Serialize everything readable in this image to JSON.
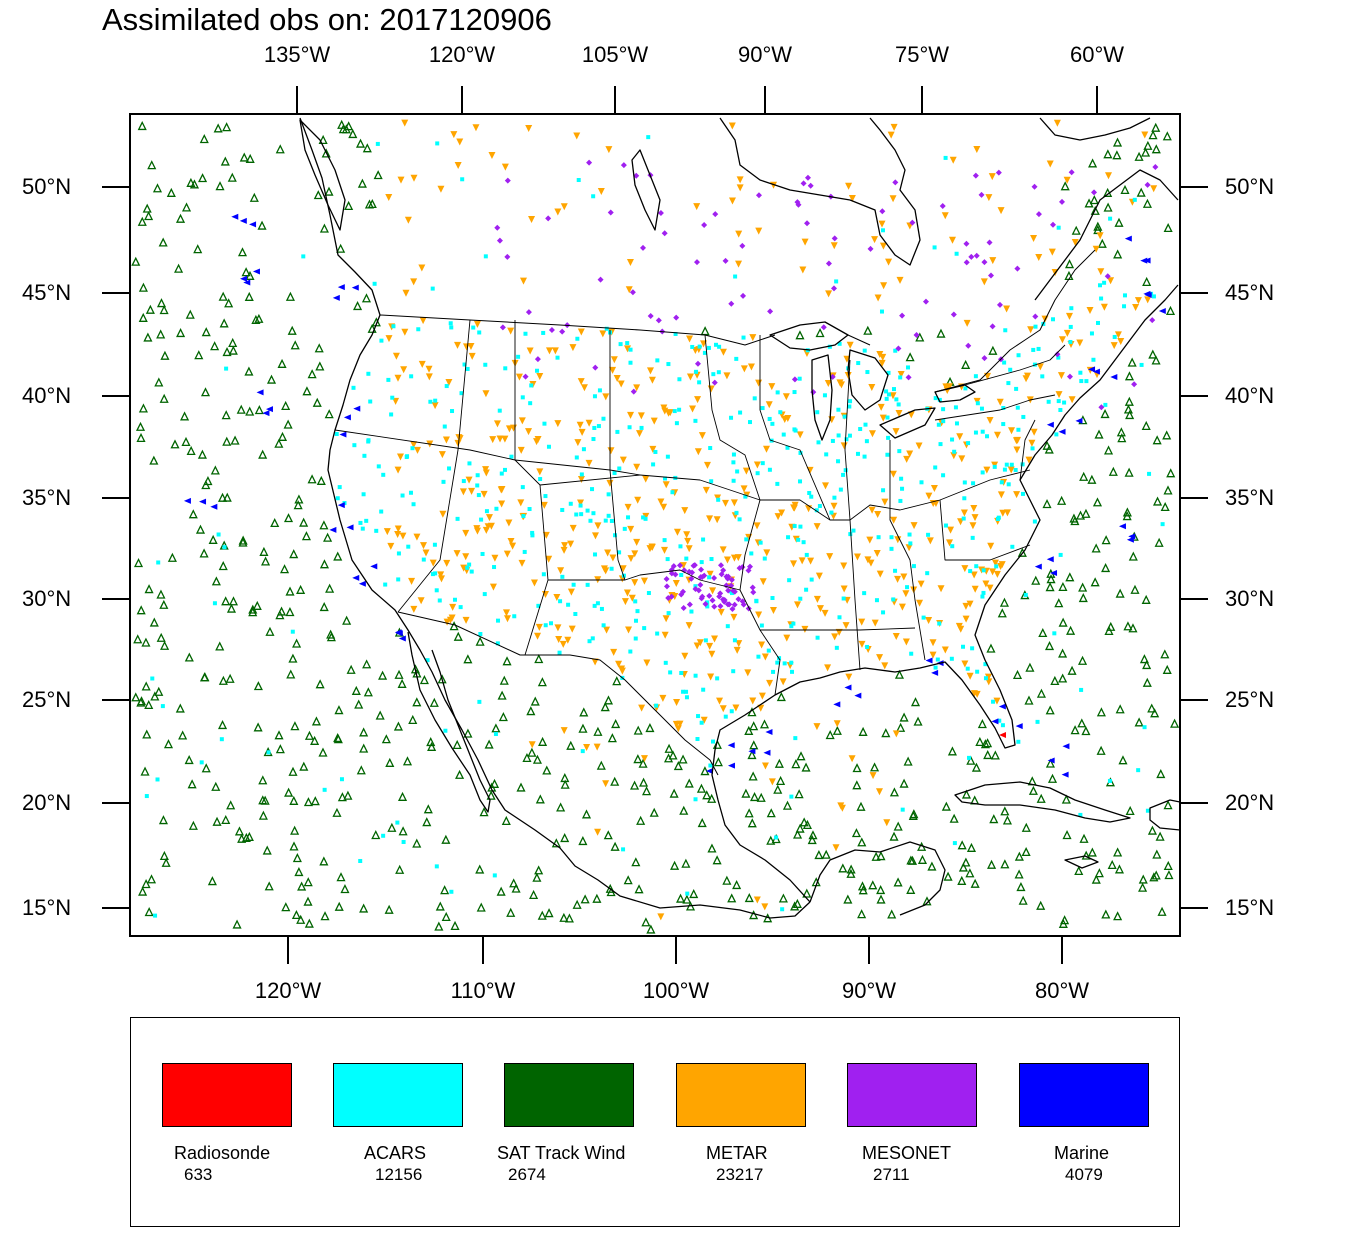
{
  "title": "Assimilated obs on: 2017120906",
  "axes": {
    "top_longitude_labels": [
      "135°W",
      "120°W",
      "105°W",
      "90°W",
      "75°W",
      "60°W"
    ],
    "bottom_longitude_labels": [
      "120°W",
      "110°W",
      "100°W",
      "90°W",
      "80°W"
    ],
    "latitude_labels": [
      "50°N",
      "45°N",
      "40°N",
      "35°N",
      "30°N",
      "25°N",
      "20°N",
      "15°N"
    ]
  },
  "legend": [
    {
      "name": "Radiosonde",
      "count": "633",
      "color": "#ff0000"
    },
    {
      "name": "ACARS",
      "count": "12156",
      "color": "#00ffff"
    },
    {
      "name": "SAT Track Wind",
      "count": "2674",
      "color": "#006400"
    },
    {
      "name": "METAR",
      "count": "23217",
      "color": "#ffa500"
    },
    {
      "name": "MESONET",
      "count": "2711",
      "color": "#a020f0"
    },
    {
      "name": "Marine",
      "count": "4079",
      "color": "#0000ff"
    }
  ],
  "symbols": {
    "Radiosonde": "red marker",
    "ACARS": "cyan square",
    "SAT Track Wind": "green open triangle",
    "METAR": "orange down-triangle",
    "MESONET": "purple diamond",
    "Marine": "blue left-triangle"
  }
}
